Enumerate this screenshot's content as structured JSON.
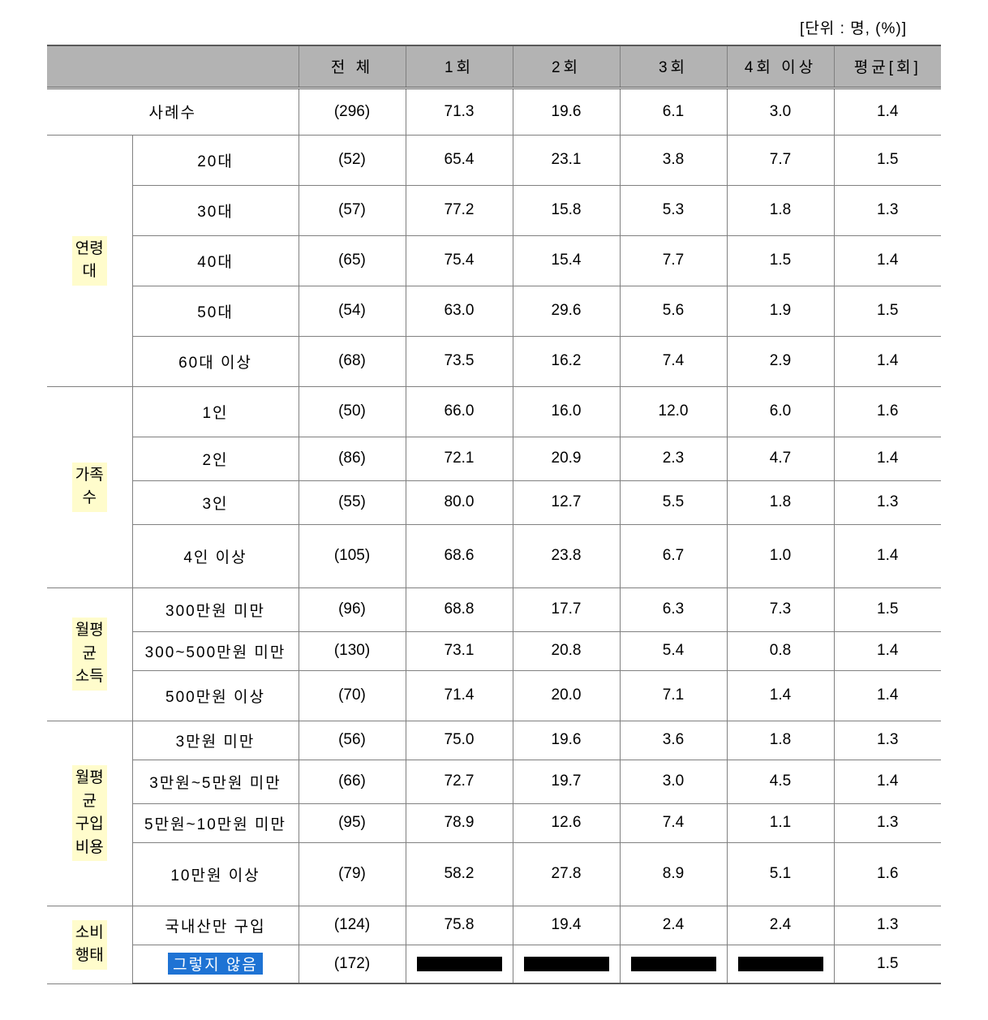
{
  "unit_text": "[단위 : 명, (%)]",
  "columns": {
    "blank": "",
    "total": "전 체",
    "c1": "1회",
    "c2": "2회",
    "c3": "3회",
    "c4": "4회 이상",
    "avg": "평균[회]"
  },
  "cases": {
    "label": "사례수",
    "total": "(296)",
    "c1": "71.3",
    "c2": "19.6",
    "c3": "6.1",
    "c4": "3.0",
    "avg": "1.4"
  },
  "groups": [
    {
      "category": "연령\n대",
      "rows": [
        {
          "label": "20대",
          "total": "(52)",
          "c1": "65.4",
          "c2": "23.1",
          "c3": "3.8",
          "c4": "7.7",
          "avg": "1.5",
          "cls": "med"
        },
        {
          "label": "30대",
          "total": "(57)",
          "c1": "77.2",
          "c2": "15.8",
          "c3": "5.3",
          "c4": "1.8",
          "avg": "1.3",
          "cls": "med"
        },
        {
          "label": "40대",
          "total": "(65)",
          "c1": "75.4",
          "c2": "15.4",
          "c3": "7.7",
          "c4": "1.5",
          "avg": "1.4",
          "cls": "med"
        },
        {
          "label": "50대",
          "total": "(54)",
          "c1": "63.0",
          "c2": "29.6",
          "c3": "5.6",
          "c4": "1.9",
          "avg": "1.5",
          "cls": "med"
        },
        {
          "label": "60대 이상",
          "total": "(68)",
          "c1": "73.5",
          "c2": "16.2",
          "c3": "7.4",
          "c4": "2.9",
          "avg": "1.4",
          "cls": "med"
        }
      ]
    },
    {
      "category": "가족\n수",
      "rows": [
        {
          "label": "1인",
          "total": "(50)",
          "c1": "66.0",
          "c2": "16.0",
          "c3": "12.0",
          "c4": "6.0",
          "avg": "1.6",
          "cls": "med"
        },
        {
          "label": "2인",
          "total": "(86)",
          "c1": "72.1",
          "c2": "20.9",
          "c3": "2.3",
          "c4": "4.7",
          "avg": "1.4",
          "cls": ""
        },
        {
          "label": "3인",
          "total": "(55)",
          "c1": "80.0",
          "c2": "12.7",
          "c3": "5.5",
          "c4": "1.8",
          "avg": "1.3",
          "cls": ""
        },
        {
          "label": "4인 이상",
          "total": "(105)",
          "c1": "68.6",
          "c2": "23.8",
          "c3": "6.7",
          "c4": "1.0",
          "avg": "1.4",
          "cls": "tall"
        }
      ]
    },
    {
      "category": "월평\n균\n소득",
      "rows": [
        {
          "label": "300만원 미만",
          "total": "(96)",
          "c1": "68.8",
          "c2": "17.7",
          "c3": "6.3",
          "c4": "7.3",
          "avg": "1.5",
          "cls": ""
        },
        {
          "label": "300~500만원 미만",
          "total": "(130)",
          "c1": "73.1",
          "c2": "20.8",
          "c3": "5.4",
          "c4": "0.8",
          "avg": "1.4",
          "cls": "short"
        },
        {
          "label": "500만원 이상",
          "total": "(70)",
          "c1": "71.4",
          "c2": "20.0",
          "c3": "7.1",
          "c4": "1.4",
          "avg": "1.4",
          "cls": "med"
        }
      ]
    },
    {
      "category": "월평\n균\n구입\n비용",
      "rows": [
        {
          "label": "3만원 미만",
          "total": "(56)",
          "c1": "75.0",
          "c2": "19.6",
          "c3": "3.6",
          "c4": "1.8",
          "avg": "1.3",
          "cls": "short"
        },
        {
          "label": "3만원~5만원 미만",
          "total": "(66)",
          "c1": "72.7",
          "c2": "19.7",
          "c3": "3.0",
          "c4": "4.5",
          "avg": "1.4",
          "cls": ""
        },
        {
          "label": "5만원~10만원 미만",
          "total": "(95)",
          "c1": "78.9",
          "c2": "12.6",
          "c3": "7.4",
          "c4": "1.1",
          "avg": "1.3",
          "cls": "short"
        },
        {
          "label": "10만원 이상",
          "total": "(79)",
          "c1": "58.2",
          "c2": "27.8",
          "c3": "8.9",
          "c4": "5.1",
          "avg": "1.6",
          "cls": "tall"
        }
      ]
    },
    {
      "category": "소비\n행태",
      "rows": [
        {
          "label": "국내산만 구입",
          "total": "(124)",
          "c1": "75.8",
          "c2": "19.4",
          "c3": "2.4",
          "c4": "2.4",
          "avg": "1.3",
          "cls": "short"
        },
        {
          "label": "그렇지 않음",
          "total": "(172)",
          "c1": "",
          "c2": "",
          "c3": "",
          "c4": "",
          "avg": "1.5",
          "cls": "short",
          "highlight": true,
          "redacted": true
        }
      ]
    }
  ]
}
